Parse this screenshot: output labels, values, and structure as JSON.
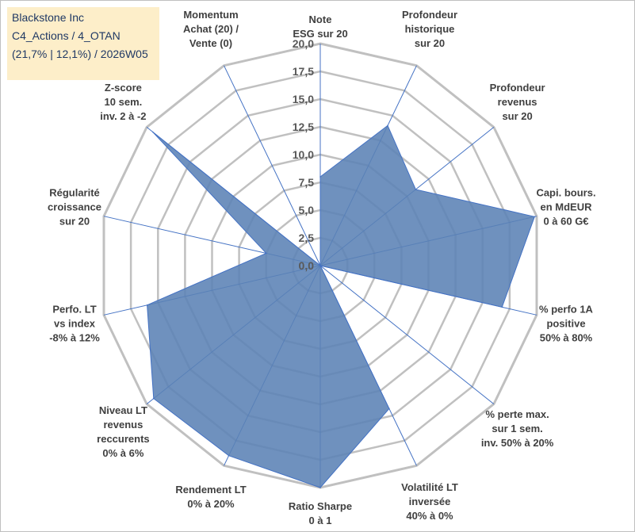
{
  "title_lines": [
    "Blackstone Inc",
    "C4_Actions / 4_OTAN",
    "(21,7% | 12,1%) / 2026W05"
  ],
  "colors": {
    "fill": "#5b82b5",
    "stroke": "#4472c4",
    "grid": "#c0c0c0",
    "spoke": "#4472c4",
    "title_bg": "#fdeec9"
  },
  "chart_data": {
    "type": "radar",
    "title": "Blackstone Inc",
    "rmax": 20,
    "ticks": [
      "0,0",
      "2,5",
      "5,0",
      "7,5",
      "10,0",
      "12,5",
      "15,0",
      "17,5",
      "20,0"
    ],
    "tick_values": [
      0,
      2.5,
      5,
      7.5,
      10,
      12.5,
      15,
      17.5,
      20
    ],
    "axes": [
      {
        "label": [
          "Note",
          "ESG sur 20"
        ],
        "value": 8
      },
      {
        "label": [
          "Profondeur",
          "historique",
          "sur 20"
        ],
        "value": 14
      },
      {
        "label": [
          "Profondeur",
          "revenus",
          "sur 20"
        ],
        "value": 11
      },
      {
        "label": [
          "Capi. bours.",
          "en MdEUR",
          "0 à 60 G€"
        ],
        "value": 19.8
      },
      {
        "label": [
          "% perfo 1A",
          "positive",
          "50% à 80%"
        ],
        "value": 16.8
      },
      {
        "label": [
          "% perte max.",
          "sur 1 sem.",
          "inv. 50% à 20%"
        ],
        "value": 0
      },
      {
        "label": [
          "Volatilité LT",
          "inversée",
          "40% à 0%"
        ],
        "value": 14.3
      },
      {
        "label": [
          "Ratio Sharpe",
          "0 à 1"
        ],
        "value": 20
      },
      {
        "label": [
          "Rendement LT",
          "0% à 20%"
        ],
        "value": 19
      },
      {
        "label": [
          "Niveau LT",
          "revenus",
          "reccurents",
          "0% à 6%"
        ],
        "value": 19.2
      },
      {
        "label": [
          "Perfo. LT",
          "vs index",
          "-8% à 12%"
        ],
        "value": 16
      },
      {
        "label": [
          "Régularité",
          "croissance",
          "sur 20"
        ],
        "value": 5
      },
      {
        "label": [
          "Z-score",
          "10 sem.",
          "inv. 2 à -2"
        ],
        "value": 19.3
      },
      {
        "label": [
          "Momentum",
          "Achat (20) /",
          "Vente (0)"
        ],
        "value": 0
      }
    ]
  }
}
